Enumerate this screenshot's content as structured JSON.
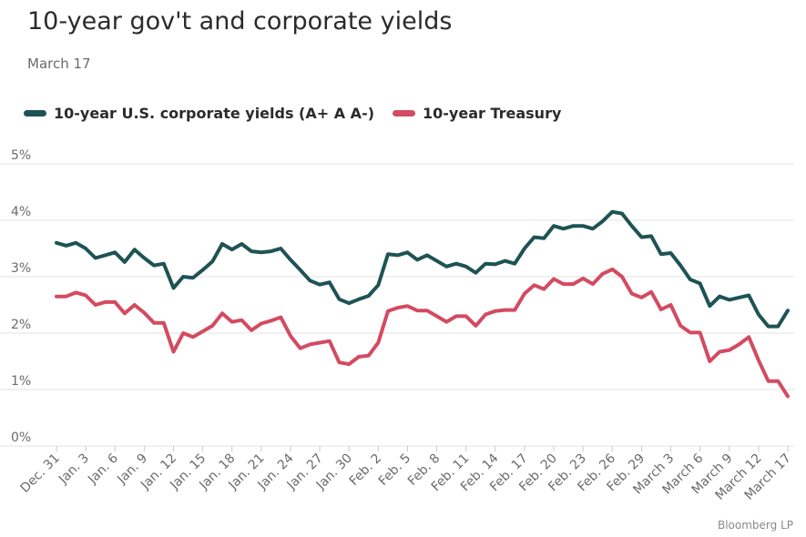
{
  "header": {
    "title": "10-year gov't and corporate yields",
    "subtitle": "March 17"
  },
  "source": "Bloomberg LP",
  "colors": {
    "corporate": "#1e5354",
    "treasury": "#d34b61",
    "grid": "#e3e3e3",
    "axis_text": "#6b6b6b"
  },
  "chart_data": {
    "type": "line",
    "title": "10-year gov't and corporate yields",
    "subtitle": "March 17",
    "ylim": [
      0,
      5
    ],
    "y_ticks": [
      "0%",
      "1%",
      "2%",
      "3%",
      "4%",
      "5%"
    ],
    "x_tick_labels": [
      "Dec. 31",
      "Jan. 3",
      "Jan. 6",
      "Jan. 9",
      "Jan. 12",
      "Jan. 15",
      "Jan. 18",
      "Jan. 21",
      "Jan. 24",
      "Jan. 27",
      "Jan. 30",
      "Feb. 2",
      "Feb. 5",
      "Feb. 8",
      "Feb. 11",
      "Feb. 14",
      "Feb. 17",
      "Feb. 20",
      "Feb. 23",
      "Feb. 26",
      "Feb. 29",
      "March 3",
      "March 6",
      "March 9",
      "March 12",
      "March 17"
    ],
    "grid": true,
    "legend_position": "top-left",
    "series": [
      {
        "name": "10-year U.S. corporate yields (A+ A A-)",
        "values": [
          3.6,
          3.55,
          3.6,
          3.5,
          3.33,
          3.38,
          3.43,
          3.26,
          3.48,
          3.33,
          3.2,
          3.23,
          2.8,
          3.0,
          2.98,
          3.12,
          3.27,
          3.58,
          3.48,
          3.58,
          3.45,
          3.43,
          3.45,
          3.5,
          3.3,
          3.12,
          2.93,
          2.86,
          2.9,
          2.6,
          2.53,
          2.6,
          2.66,
          2.85,
          3.4,
          3.38,
          3.43,
          3.3,
          3.38,
          3.28,
          3.18,
          3.23,
          3.18,
          3.07,
          3.23,
          3.22,
          3.28,
          3.23,
          3.5,
          3.7,
          3.68,
          3.9,
          3.85,
          3.9,
          3.9,
          3.85,
          3.98,
          4.15,
          4.12,
          3.9,
          3.7,
          3.72,
          3.4,
          3.42,
          3.2,
          2.95,
          2.88,
          2.48,
          2.65,
          2.59,
          2.63,
          2.67,
          2.33,
          2.12,
          2.12,
          2.4
        ]
      },
      {
        "name": "10-year Treasury",
        "values": [
          2.65,
          2.65,
          2.72,
          2.67,
          2.5,
          2.55,
          2.55,
          2.35,
          2.5,
          2.36,
          2.18,
          2.18,
          1.67,
          2.0,
          1.93,
          2.03,
          2.13,
          2.35,
          2.2,
          2.23,
          2.05,
          2.17,
          2.22,
          2.28,
          1.95,
          1.73,
          1.8,
          1.83,
          1.86,
          1.48,
          1.45,
          1.58,
          1.6,
          1.83,
          2.39,
          2.45,
          2.48,
          2.4,
          2.4,
          2.3,
          2.2,
          2.3,
          2.3,
          2.13,
          2.33,
          2.39,
          2.41,
          2.41,
          2.7,
          2.85,
          2.78,
          2.96,
          2.87,
          2.87,
          2.97,
          2.87,
          3.05,
          3.13,
          3.0,
          2.7,
          2.63,
          2.73,
          2.42,
          2.5,
          2.13,
          2.01,
          2.01,
          1.5,
          1.67,
          1.7,
          1.8,
          1.93,
          1.52,
          1.15,
          1.15,
          0.88
        ]
      }
    ]
  }
}
